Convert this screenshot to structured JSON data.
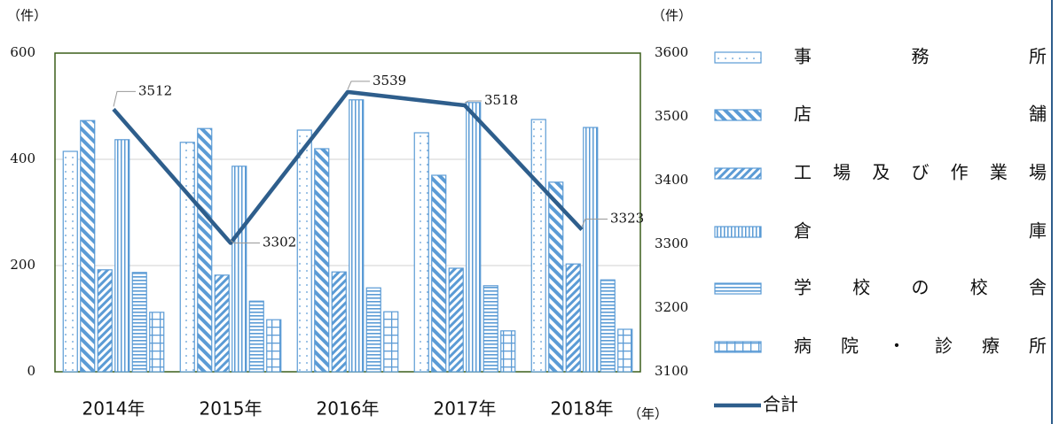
{
  "chart_data": {
    "type": "bar",
    "y_label": "（件）",
    "y2_label": "（件）",
    "x_label": "（年）",
    "categories": [
      "2014年",
      "2015年",
      "2016年",
      "2017年",
      "2018年"
    ],
    "series": [
      {
        "name": "事務所",
        "color": "#5b9bd5",
        "pattern": "dots",
        "values": [
          415,
          432,
          455,
          450,
          475
        ]
      },
      {
        "name": "店舗",
        "color": "#5b9bd5",
        "pattern": "wide-down-diagonal",
        "values": [
          473,
          458,
          420,
          370,
          357
        ]
      },
      {
        "name": "工場及び作業場",
        "color": "#5b9bd5",
        "pattern": "up-diagonal",
        "values": [
          192,
          182,
          188,
          195,
          203
        ]
      },
      {
        "name": "倉庫",
        "color": "#5b9bd5",
        "pattern": "vertical",
        "values": [
          437,
          387,
          512,
          507,
          460
        ]
      },
      {
        "name": "学校の校舎",
        "color": "#5b9bd5",
        "pattern": "horizontal",
        "values": [
          187,
          133,
          158,
          162,
          173
        ]
      },
      {
        "name": "病院・診療所",
        "color": "#5b9bd5",
        "pattern": "grid",
        "values": [
          112,
          98,
          113,
          77,
          80
        ]
      },
      {
        "name": "合計",
        "color": "#2e5e8c",
        "type": "line",
        "axis": "y2",
        "values": [
          3512,
          3302,
          3539,
          3518,
          3323
        ]
      }
    ],
    "ylim": [
      0,
      600
    ],
    "yticks": [
      0,
      200,
      400,
      600
    ],
    "y2lim": [
      3100,
      3600
    ],
    "y2ticks": [
      3100,
      3200,
      3300,
      3400,
      3500,
      3600
    ],
    "grid": true,
    "legend": "right"
  }
}
